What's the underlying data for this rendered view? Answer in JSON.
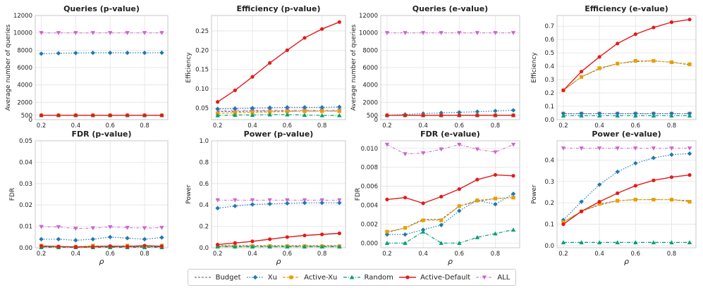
{
  "chart_data": [
    {
      "type": "line",
      "title": "Queries (p-value)",
      "xlabel": "",
      "ylabel": "Average number of queries",
      "x": [
        0.2,
        0.3,
        0.4,
        0.5,
        0.6,
        0.7,
        0.8,
        0.9
      ],
      "ylim": [
        0,
        12000
      ],
      "yticks": [
        0,
        500,
        2000,
        4000,
        6000,
        8000,
        10000,
        12000
      ],
      "ytick_labels": [
        "0",
        "500",
        "2000",
        "4000",
        "6000",
        "8000",
        "10000",
        "12000"
      ],
      "xticks": [
        0.2,
        0.4,
        0.6,
        0.8
      ],
      "xtick_labels": [
        "0.2",
        "0.4",
        "0.6",
        "0.8"
      ],
      "series": [
        {
          "name": "Budget",
          "values": [
            500,
            500,
            500,
            500,
            500,
            500,
            500,
            500
          ]
        },
        {
          "name": "Xu",
          "values": [
            7600,
            7650,
            7680,
            7700,
            7700,
            7700,
            7700,
            7710
          ]
        },
        {
          "name": "Active-Xu",
          "values": [
            500,
            500,
            500,
            500,
            500,
            500,
            500,
            500
          ]
        },
        {
          "name": "Random",
          "values": [
            500,
            500,
            500,
            500,
            500,
            500,
            500,
            500
          ]
        },
        {
          "name": "Active-Default",
          "values": [
            500,
            500,
            500,
            500,
            500,
            500,
            500,
            500
          ]
        },
        {
          "name": "ALL",
          "values": [
            10000,
            10000,
            10000,
            10000,
            10000,
            10000,
            10000,
            10000
          ]
        }
      ]
    },
    {
      "type": "line",
      "title": "Efficiency (p-value)",
      "xlabel": "",
      "ylabel": "Efficiency",
      "x": [
        0.2,
        0.3,
        0.4,
        0.5,
        0.6,
        0.7,
        0.8,
        0.9
      ],
      "ylim": [
        0.02,
        0.29
      ],
      "yticks": [
        0.05,
        0.1,
        0.15,
        0.2,
        0.25
      ],
      "ytick_labels": [
        "0.05",
        "0.10",
        "0.15",
        "0.20",
        "0.25"
      ],
      "xticks": [
        0.2,
        0.4,
        0.6,
        0.8
      ],
      "xtick_labels": [
        "0.2",
        "0.4",
        "0.6",
        "0.8"
      ],
      "series": [
        {
          "name": "Budget",
          "values": [
            0.041,
            0.041,
            0.042,
            0.042,
            0.042,
            0.042,
            0.042,
            0.042
          ]
        },
        {
          "name": "Xu",
          "values": [
            0.048,
            0.049,
            0.05,
            0.051,
            0.052,
            0.052,
            0.052,
            0.053
          ]
        },
        {
          "name": "Active-Xu",
          "values": [
            0.036,
            0.038,
            0.039,
            0.04,
            0.041,
            0.042,
            0.042,
            0.042
          ]
        },
        {
          "name": "Random",
          "values": [
            0.031,
            0.032,
            0.032,
            0.033,
            0.033,
            0.032,
            0.031,
            0.031
          ]
        },
        {
          "name": "Active-Default",
          "values": [
            0.066,
            0.096,
            0.131,
            0.167,
            0.2,
            0.232,
            0.255,
            0.273
          ]
        },
        {
          "name": "ALL",
          "values": [
            0.044,
            0.044,
            0.044,
            0.044,
            0.044,
            0.044,
            0.044,
            0.044
          ]
        }
      ]
    },
    {
      "type": "line",
      "title": "Queries (e-value)",
      "xlabel": "",
      "ylabel": "Average number of queries",
      "x": [
        0.2,
        0.3,
        0.4,
        0.5,
        0.6,
        0.7,
        0.8,
        0.9
      ],
      "ylim": [
        0,
        12000
      ],
      "yticks": [
        0,
        500,
        2000,
        4000,
        6000,
        8000,
        10000,
        12000
      ],
      "ytick_labels": [
        "0",
        "500",
        "2000",
        "4000",
        "6000",
        "8000",
        "10000",
        "12000"
      ],
      "xticks": [
        0.2,
        0.4,
        0.6,
        0.8
      ],
      "xtick_labels": [
        "0.2",
        "0.4",
        "0.6",
        "0.8"
      ],
      "series": [
        {
          "name": "Budget",
          "values": [
            500,
            500,
            500,
            500,
            500,
            500,
            500,
            500
          ]
        },
        {
          "name": "Xu",
          "values": [
            500,
            600,
            700,
            780,
            850,
            920,
            1000,
            1080
          ]
        },
        {
          "name": "Active-Xu",
          "values": [
            500,
            500,
            500,
            500,
            500,
            500,
            500,
            500
          ]
        },
        {
          "name": "Random",
          "values": [
            500,
            500,
            500,
            500,
            500,
            500,
            500,
            500
          ]
        },
        {
          "name": "Active-Default",
          "values": [
            500,
            500,
            500,
            500,
            500,
            500,
            500,
            500
          ]
        },
        {
          "name": "ALL",
          "values": [
            10000,
            10000,
            10000,
            10000,
            10000,
            10000,
            10000,
            10000
          ]
        }
      ]
    },
    {
      "type": "line",
      "title": "Efficiency (e-value)",
      "xlabel": "",
      "ylabel": "Efficiency",
      "x": [
        0.2,
        0.3,
        0.4,
        0.5,
        0.6,
        0.7,
        0.8,
        0.9
      ],
      "ylim": [
        0,
        0.78
      ],
      "yticks": [
        0,
        0.1,
        0.2,
        0.3,
        0.4,
        0.5,
        0.6,
        0.7
      ],
      "ytick_labels": [
        "0.0",
        "0.1",
        "0.2",
        "0.3",
        "0.4",
        "0.5",
        "0.6",
        "0.7"
      ],
      "xticks": [
        0.2,
        0.4,
        0.6,
        0.8
      ],
      "xtick_labels": [
        "0.2",
        "0.4",
        "0.6",
        "0.8"
      ],
      "series": [
        {
          "name": "Budget",
          "values": [
            0.22,
            0.32,
            0.38,
            0.42,
            0.435,
            0.44,
            0.43,
            0.41
          ]
        },
        {
          "name": "Xu",
          "values": [
            0.045,
            0.045,
            0.045,
            0.045,
            0.045,
            0.045,
            0.045,
            0.045
          ]
        },
        {
          "name": "Active-Xu",
          "values": [
            0.22,
            0.32,
            0.385,
            0.42,
            0.44,
            0.44,
            0.43,
            0.415
          ]
        },
        {
          "name": "Random",
          "values": [
            0.03,
            0.03,
            0.03,
            0.03,
            0.03,
            0.03,
            0.03,
            0.03
          ]
        },
        {
          "name": "Active-Default",
          "values": [
            0.22,
            0.36,
            0.47,
            0.57,
            0.64,
            0.69,
            0.73,
            0.75
          ]
        },
        {
          "name": "ALL",
          "values": [
            0.045,
            0.045,
            0.045,
            0.045,
            0.045,
            0.045,
            0.045,
            0.045
          ]
        }
      ]
    },
    {
      "type": "line",
      "title": "FDR (p-value)",
      "xlabel": "ρ",
      "ylabel": "FDR",
      "x": [
        0.2,
        0.3,
        0.4,
        0.5,
        0.6,
        0.7,
        0.8,
        0.9
      ],
      "ylim": [
        0,
        0.05
      ],
      "yticks": [
        0,
        0.01,
        0.02,
        0.03,
        0.04,
        0.05
      ],
      "ytick_labels": [
        "0.00",
        "0.01",
        "0.02",
        "0.03",
        "0.04",
        "0.05"
      ],
      "xticks": [
        0.2,
        0.4,
        0.6,
        0.8
      ],
      "xtick_labels": [
        "0.2",
        "0.4",
        "0.6",
        "0.8"
      ],
      "series": [
        {
          "name": "Budget",
          "values": [
            0.0005,
            0.0005,
            0.0005,
            0.0005,
            0.0005,
            0.0005,
            0.0005,
            0.0005
          ]
        },
        {
          "name": "Xu",
          "values": [
            0.004,
            0.004,
            0.0035,
            0.004,
            0.005,
            0.0045,
            0.004,
            0.0048
          ]
        },
        {
          "name": "Active-Xu",
          "values": [
            0.001,
            0.0005,
            0.0005,
            0.001,
            0.0005,
            0.001,
            0.0005,
            0.001
          ]
        },
        {
          "name": "Random",
          "values": [
            0.0002,
            0.0002,
            0.0002,
            0.0002,
            0.0002,
            0.0002,
            0.0002,
            0.0002
          ]
        },
        {
          "name": "Active-Default",
          "values": [
            0.0008,
            0.0006,
            0.0004,
            0.0005,
            0.0008,
            0.0006,
            0.001,
            0.0007
          ]
        },
        {
          "name": "ALL",
          "values": [
            0.0098,
            0.0097,
            0.009,
            0.0092,
            0.0097,
            0.0094,
            0.0092,
            0.0094
          ]
        }
      ]
    },
    {
      "type": "line",
      "title": "Power (p-value)",
      "xlabel": "ρ",
      "ylabel": "Power",
      "x": [
        0.2,
        0.3,
        0.4,
        0.5,
        0.6,
        0.7,
        0.8,
        0.9
      ],
      "ylim": [
        0,
        1
      ],
      "yticks": [
        0,
        0.2,
        0.4,
        0.6,
        0.8,
        1
      ],
      "ytick_labels": [
        "0.0",
        "0.2",
        "0.4",
        "0.6",
        "0.8",
        "1.0"
      ],
      "xticks": [
        0.2,
        0.4,
        0.6,
        0.8
      ],
      "xtick_labels": [
        "0.2",
        "0.4",
        "0.6",
        "0.8"
      ],
      "series": [
        {
          "name": "Budget",
          "values": [
            0.02,
            0.02,
            0.02,
            0.02,
            0.02,
            0.02,
            0.02,
            0.02
          ]
        },
        {
          "name": "Xu",
          "values": [
            0.37,
            0.39,
            0.405,
            0.41,
            0.415,
            0.42,
            0.42,
            0.42
          ]
        },
        {
          "name": "Active-Xu",
          "values": [
            0.015,
            0.015,
            0.015,
            0.015,
            0.015,
            0.015,
            0.015,
            0.015
          ]
        },
        {
          "name": "Random",
          "values": [
            0.01,
            0.01,
            0.01,
            0.01,
            0.01,
            0.01,
            0.01,
            0.01
          ]
        },
        {
          "name": "Active-Default",
          "values": [
            0.03,
            0.045,
            0.06,
            0.08,
            0.1,
            0.115,
            0.125,
            0.135
          ]
        },
        {
          "name": "ALL",
          "values": [
            0.445,
            0.445,
            0.445,
            0.445,
            0.445,
            0.445,
            0.445,
            0.445
          ]
        }
      ]
    },
    {
      "type": "line",
      "title": "FDR (e-value)",
      "xlabel": "ρ",
      "ylabel": "FDR",
      "x": [
        0.2,
        0.3,
        0.4,
        0.5,
        0.6,
        0.7,
        0.8,
        0.9
      ],
      "ylim": [
        -0.0005,
        0.0108
      ],
      "yticks": [
        0,
        0.002,
        0.004,
        0.006,
        0.008,
        0.01
      ],
      "ytick_labels": [
        "0.000",
        "0.002",
        "0.004",
        "0.006",
        "0.008",
        "0.010"
      ],
      "xticks": [
        0.2,
        0.4,
        0.6,
        0.8
      ],
      "xtick_labels": [
        "0.2",
        "0.4",
        "0.6",
        "0.8"
      ],
      "series": [
        {
          "name": "Budget",
          "values": [
            0.0011,
            0.0016,
            0.0025,
            0.0025,
            0.0039,
            0.0044,
            0.0047,
            0.0048
          ]
        },
        {
          "name": "Xu",
          "values": [
            0.0009,
            0.0009,
            0.0014,
            0.0019,
            0.0034,
            0.0045,
            0.0041,
            0.0052
          ]
        },
        {
          "name": "Active-Xu",
          "values": [
            0.0012,
            0.0016,
            0.0024,
            0.0024,
            0.0039,
            0.0045,
            0.0047,
            0.0048
          ]
        },
        {
          "name": "Random",
          "values": [
            0,
            0,
            0.0012,
            0,
            0,
            0.0006,
            0.001,
            0.0014
          ]
        },
        {
          "name": "Active-Default",
          "values": [
            0.0046,
            0.0048,
            0.0042,
            0.0049,
            0.0057,
            0.0067,
            0.0072,
            0.0071
          ]
        },
        {
          "name": "ALL",
          "values": [
            0.0104,
            0.0094,
            0.0095,
            0.0099,
            0.0104,
            0.0099,
            0.0096,
            0.0104
          ]
        }
      ]
    },
    {
      "type": "line",
      "title": "Power (e-value)",
      "xlabel": "ρ",
      "ylabel": "Power",
      "x": [
        0.2,
        0.3,
        0.4,
        0.5,
        0.6,
        0.7,
        0.8,
        0.9
      ],
      "ylim": [
        -0.01,
        0.49
      ],
      "yticks": [
        0,
        0.1,
        0.2,
        0.3,
        0.4
      ],
      "ytick_labels": [
        "0.0",
        "0.1",
        "0.2",
        "0.3",
        "0.4"
      ],
      "xticks": [
        0.2,
        0.4,
        0.6,
        0.8
      ],
      "xtick_labels": [
        "0.2",
        "0.4",
        "0.6",
        "0.8"
      ],
      "series": [
        {
          "name": "Budget",
          "values": [
            0.11,
            0.16,
            0.19,
            0.21,
            0.215,
            0.215,
            0.215,
            0.21
          ]
        },
        {
          "name": "Xu",
          "values": [
            0.12,
            0.205,
            0.285,
            0.345,
            0.385,
            0.41,
            0.425,
            0.43
          ]
        },
        {
          "name": "Active-Xu",
          "values": [
            0.11,
            0.16,
            0.195,
            0.21,
            0.215,
            0.215,
            0.215,
            0.205
          ]
        },
        {
          "name": "Random",
          "values": [
            0.015,
            0.015,
            0.015,
            0.015,
            0.015,
            0.015,
            0.015,
            0.015
          ]
        },
        {
          "name": "Active-Default",
          "values": [
            0.1,
            0.16,
            0.205,
            0.245,
            0.28,
            0.305,
            0.32,
            0.33
          ]
        },
        {
          "name": "ALL",
          "values": [
            0.455,
            0.455,
            0.455,
            0.455,
            0.455,
            0.455,
            0.455,
            0.455
          ]
        }
      ]
    }
  ],
  "legend": {
    "placement": "bottom-center",
    "entries": [
      "Budget",
      "Xu",
      "Active-Xu",
      "Random",
      "Active-Default",
      "ALL"
    ]
  },
  "styles": {
    "Budget": {
      "color": "#555555",
      "dash": "3,2",
      "marker": "none",
      "width": 0.9
    },
    "Xu": {
      "color": "#1f78b4",
      "dash": "1.5,2",
      "marker": "diamond",
      "width": 1.2
    },
    "Active-Xu": {
      "color": "#e69f00",
      "dash": "4,2",
      "marker": "square",
      "width": 1.2
    },
    "Random": {
      "color": "#009e73",
      "dash": "5,2,1,2",
      "marker": "triangle-up",
      "width": 1.2
    },
    "Active-Default": {
      "color": "#e41a1c",
      "dash": "",
      "marker": "circle",
      "width": 1.4
    },
    "ALL": {
      "color": "#cc66cc",
      "dash": "4,2,1,2",
      "marker": "triangle-down",
      "width": 1.0
    }
  }
}
